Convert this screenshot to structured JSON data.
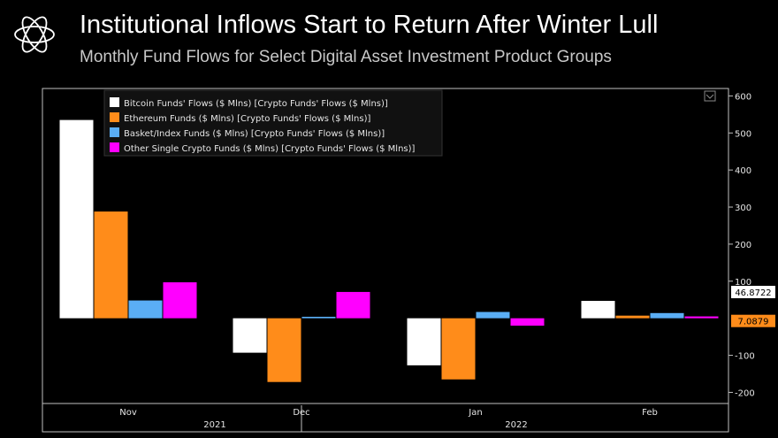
{
  "header": {
    "title": "Institutional Inflows Start to Return After Winter Lull",
    "subtitle": "Monthly Fund Flows for Select Digital Asset Investment Product Groups"
  },
  "colors": {
    "background": "#000000",
    "bitcoin": "#ffffff",
    "ethereum": "#ff8c1a",
    "basket": "#5aaef5",
    "other": "#ff00ff",
    "axis": "#bfbfbf"
  },
  "chart_data": {
    "type": "bar",
    "categories": [
      "Nov",
      "Dec",
      "Jan",
      "Feb"
    ],
    "year_labels": [
      "2021",
      "2022"
    ],
    "series": [
      {
        "name": "Bitcoin Funds' Flows ($ Mlns) [Crypto Funds' Flows ($ Mlns)]",
        "values": [
          535,
          -93,
          -127,
          46.8722
        ]
      },
      {
        "name": "Ethereum Funds ($ Mlns) [Crypto Funds' Flows ($ Mlns)]",
        "values": [
          288,
          -172,
          -165,
          7.0879
        ]
      },
      {
        "name": "Basket/Index Funds ($ Mlns) [Crypto Funds' Flows ($ Mlns)]",
        "values": [
          48,
          4,
          17,
          14
        ]
      },
      {
        "name": "Other Single Crypto Funds ($ Mlns) [Crypto Funds' Flows ($ Mlns)]",
        "values": [
          97,
          71,
          -20,
          5
        ]
      }
    ],
    "y_ticks": [
      "600",
      "500",
      "400",
      "300",
      "200",
      "100",
      "-100",
      "-200"
    ],
    "y_tick_values": [
      600,
      500,
      400,
      300,
      200,
      100,
      -100,
      -200
    ],
    "ylim": [
      -230,
      620
    ],
    "last_value_labels": [
      "46.8722",
      "7.0879"
    ],
    "legend_position": "top-left"
  }
}
